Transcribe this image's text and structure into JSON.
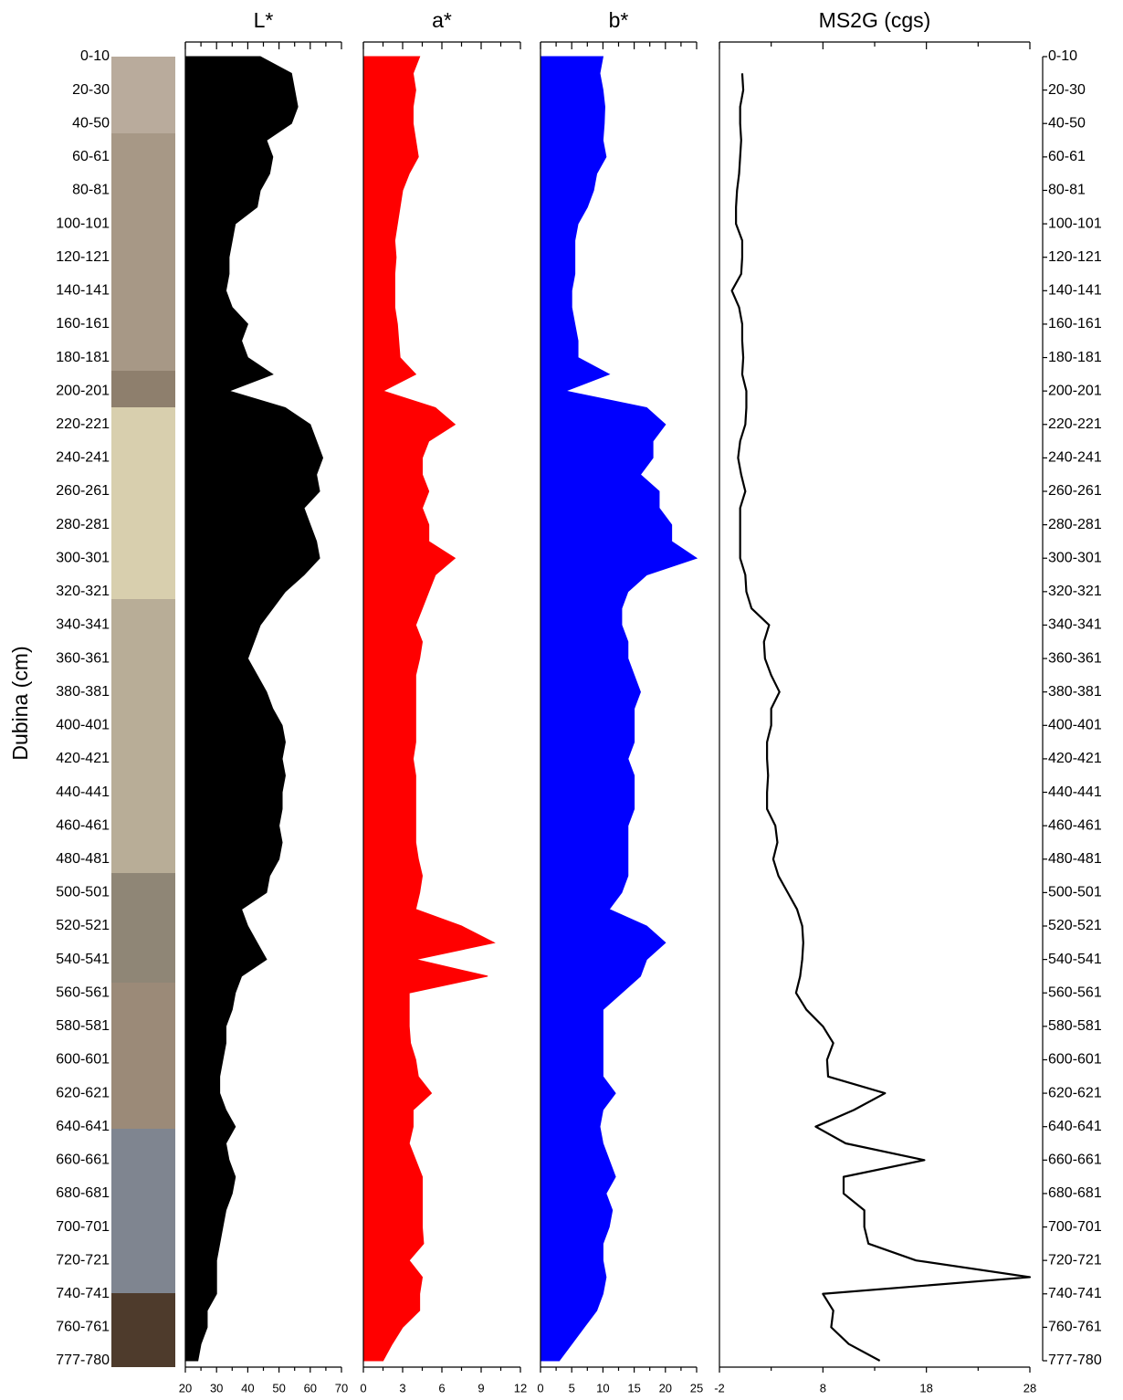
{
  "chart_data": {
    "y_label": "Dubina (cm)",
    "categories": [
      "0-10",
      null,
      "20-30",
      null,
      "40-50",
      null,
      "60-61",
      null,
      "80-81",
      null,
      "100-101",
      null,
      "120-121",
      null,
      "140-141",
      null,
      "160-161",
      null,
      "180-181",
      null,
      "200-201",
      null,
      "220-221",
      null,
      "240-241",
      null,
      "260-261",
      null,
      "280-281",
      null,
      "300-301",
      null,
      "320-321",
      null,
      "340-341",
      null,
      "360-361",
      null,
      "380-381",
      null,
      "400-401",
      null,
      "420-421",
      null,
      "440-441",
      null,
      "460-461",
      null,
      "480-481",
      null,
      "500-501",
      null,
      "520-521",
      null,
      "540-541",
      null,
      "560-561",
      null,
      "580-581",
      null,
      "600-601",
      null,
      "620-621",
      null,
      "640-641",
      null,
      "660-661",
      null,
      "680-681",
      null,
      "700-701",
      null,
      "720-721",
      null,
      "740-741",
      null,
      "760-761",
      null,
      "777-780"
    ],
    "panels": [
      {
        "type": "area",
        "title": "L*",
        "color": "#000000",
        "xlim": [
          20,
          70
        ],
        "xticks": [
          20,
          30,
          40,
          50,
          60,
          70
        ],
        "values": [
          44,
          54,
          55,
          56,
          54,
          46,
          48,
          47,
          44,
          43,
          36,
          35,
          34,
          34,
          33,
          35,
          40,
          38,
          40,
          48,
          34,
          52,
          60,
          62,
          64,
          62,
          63,
          58,
          60,
          62,
          63,
          58,
          52,
          48,
          44,
          42,
          40,
          43,
          46,
          48,
          51,
          52,
          51,
          52,
          51,
          51,
          50,
          51,
          50,
          47,
          46,
          38,
          40,
          43,
          46,
          38,
          36,
          35,
          33,
          33,
          32,
          31,
          31,
          33,
          36,
          33,
          34,
          36,
          35,
          33,
          32,
          31,
          30,
          30,
          30,
          27,
          27,
          25,
          24
        ]
      },
      {
        "type": "area",
        "title": "a*",
        "color": "#ff0000",
        "xlim": [
          0,
          12
        ],
        "xticks": [
          0,
          3,
          6,
          9,
          12
        ],
        "values": [
          4.3,
          3.8,
          4,
          3.8,
          3.8,
          4,
          4.2,
          3.5,
          3,
          2.8,
          2.6,
          2.4,
          2.5,
          2.4,
          2.4,
          2.4,
          2.6,
          2.7,
          2.8,
          4,
          1.5,
          5.5,
          7,
          5,
          4.5,
          4.5,
          5,
          4.5,
          5,
          5,
          7,
          5.5,
          5,
          4.5,
          4,
          4.5,
          4.3,
          4,
          4,
          4,
          4,
          4,
          3.8,
          4,
          4,
          4,
          4,
          4,
          4.2,
          4.5,
          4.3,
          4,
          7.5,
          10,
          4,
          9.5,
          3.5,
          3.5,
          3.5,
          3.6,
          4,
          4.2,
          5.2,
          3.8,
          3.8,
          3.5,
          4,
          4.5,
          4.5,
          4.5,
          4.5,
          4.6,
          3.5,
          4.5,
          4.3,
          4.3,
          3,
          2.2,
          1.5
        ]
      },
      {
        "type": "area",
        "title": "b*",
        "color": "#0000ff",
        "xlim": [
          0,
          25
        ],
        "xticks": [
          0,
          5,
          10,
          15,
          20,
          25
        ],
        "values": [
          10,
          9.5,
          10,
          10.3,
          10.2,
          10,
          10.5,
          9,
          8.5,
          7.5,
          6,
          5.5,
          5.5,
          5.5,
          5,
          5,
          5.5,
          6,
          6,
          11,
          4,
          17,
          20,
          18,
          18,
          16,
          19,
          19,
          21,
          21,
          25,
          17,
          14,
          13,
          13,
          14,
          14,
          15,
          16,
          15,
          15,
          15,
          14,
          15,
          15,
          15,
          14,
          14,
          14,
          14,
          13,
          11,
          17,
          20,
          17,
          16,
          13,
          10,
          10,
          10,
          10,
          10,
          12,
          10,
          9.5,
          10,
          11,
          12,
          10.5,
          11.5,
          11,
          10,
          10,
          10.5,
          10,
          9,
          7,
          5,
          3
        ]
      },
      {
        "type": "line",
        "title": "MS2G (cgs)",
        "color": "#000000",
        "xlim": [
          -2,
          28
        ],
        "xticks": [
          -2,
          8,
          18,
          28
        ],
        "values": [
          null,
          0.2,
          0.3,
          0,
          0,
          0.1,
          0,
          -0.1,
          -0.3,
          -0.4,
          -0.4,
          0.2,
          0.2,
          0.1,
          -0.8,
          -0.1,
          0.2,
          0.2,
          0.3,
          0.2,
          0.6,
          0.6,
          0.5,
          0,
          -0.2,
          0.1,
          0.5,
          0,
          0,
          0,
          0,
          0.5,
          0.6,
          1.1,
          2.8,
          2.3,
          2.4,
          3,
          3.8,
          3,
          3,
          2.6,
          2.6,
          2.7,
          2.6,
          2.6,
          3.4,
          3.6,
          3.2,
          3.7,
          4.6,
          5.5,
          6,
          6.1,
          6,
          5.8,
          5.4,
          6.4,
          8,
          9,
          8.4,
          8.5,
          14,
          11,
          7.3,
          10.2,
          17.8,
          10,
          10,
          12,
          12,
          12.4,
          17,
          28,
          8,
          9,
          8.8,
          10.5,
          13.5
        ]
      }
    ]
  }
}
